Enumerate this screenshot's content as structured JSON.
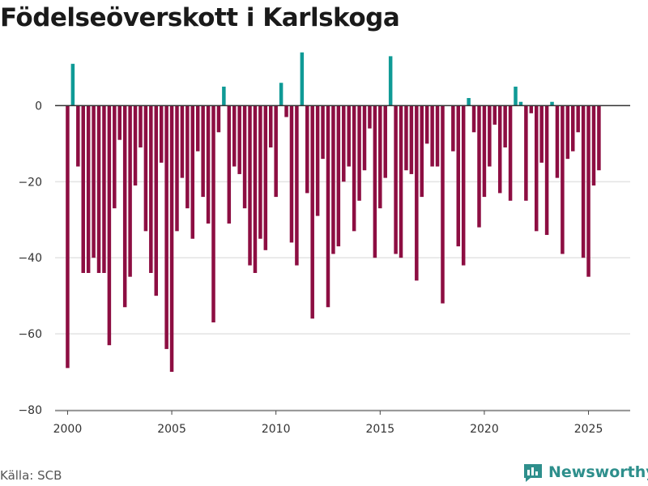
{
  "title": "Födelseöverskott i Karlskoga",
  "source": "Källa: SCB",
  "brand": {
    "name": "Newsworthy",
    "icon": "bar-chart-logo-icon"
  },
  "colors": {
    "positive": "#0f9a96",
    "negative": "#8d0e42",
    "grid": "#e3e3e3",
    "zero": "#333333",
    "brand": "#2e8f8c"
  },
  "chart_data": {
    "type": "bar",
    "title": "Födelseöverskott i Karlskoga",
    "xlabel": "",
    "ylabel": "",
    "ylim": [
      -80,
      15
    ],
    "yticks": [
      0,
      -20,
      -40,
      -60,
      -80
    ],
    "ytick_labels": [
      "0",
      "−20",
      "−40",
      "−60",
      "−80"
    ],
    "xlim": [
      1999.4,
      2027.0
    ],
    "xticks": [
      2000,
      2005,
      2010,
      2015,
      2020,
      2025
    ],
    "xtick_labels": [
      "2000",
      "2005",
      "2010",
      "2015",
      "2020",
      "2025"
    ],
    "start_year": 2000.0,
    "step": 0.25,
    "grid": true,
    "values": [
      -69,
      11,
      -16,
      -44,
      -44,
      -40,
      -44,
      -44,
      -63,
      -27,
      -9,
      -53,
      -45,
      -21,
      -11,
      -33,
      -44,
      -50,
      -15,
      -64,
      -70,
      -33,
      -19,
      -27,
      -35,
      -12,
      -24,
      -31,
      -57,
      -7,
      5,
      -31,
      -16,
      -18,
      -27,
      -42,
      -44,
      -35,
      -38,
      -11,
      -24,
      6,
      -3,
      -36,
      -42,
      14,
      -23,
      -56,
      -29,
      -14,
      -53,
      -39,
      -37,
      -20,
      -16,
      -33,
      -25,
      -17,
      -6,
      -40,
      -27,
      -19,
      13,
      -39,
      -40,
      -17,
      -18,
      -46,
      -24,
      -10,
      -16,
      -16,
      -52,
      0,
      -12,
      -37,
      -42,
      2,
      -7,
      -32,
      -24,
      -16,
      -5,
      -23,
      -11,
      -25,
      5,
      1,
      -25,
      -2,
      -33,
      -15,
      -34,
      1,
      -19,
      -39,
      -14,
      -12,
      -7,
      -40,
      -45,
      -21,
      -17
    ]
  }
}
